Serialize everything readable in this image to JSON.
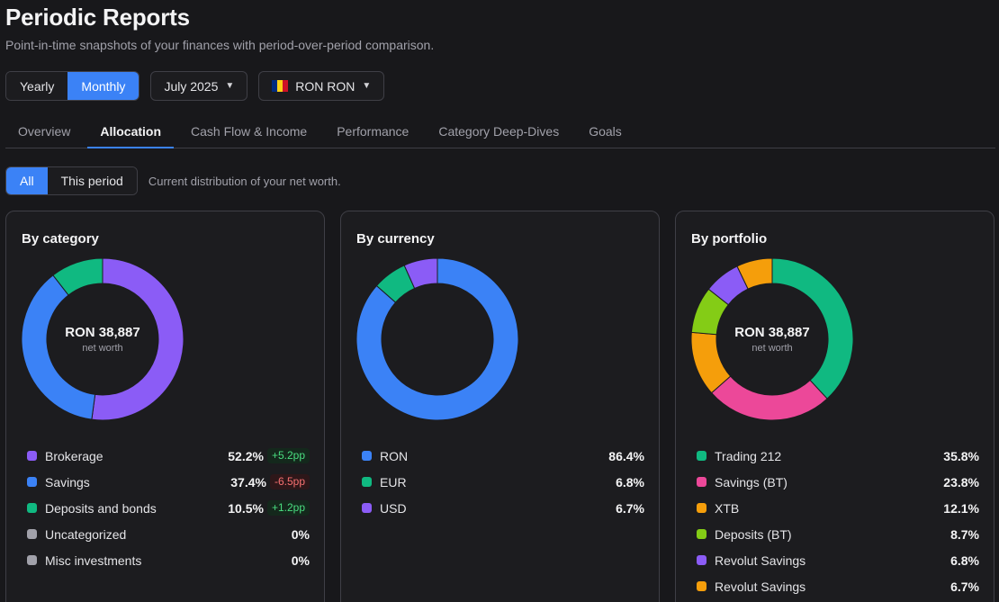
{
  "header": {
    "title": "Periodic Reports",
    "subtitle": "Point-in-time snapshots of your finances with period-over-period comparison."
  },
  "controls": {
    "period_options": [
      {
        "label": "Yearly",
        "active": false
      },
      {
        "label": "Monthly",
        "active": true
      }
    ],
    "month": "July 2025",
    "currency": "RON RON",
    "flag_colors": [
      "#002B7F",
      "#FCD116",
      "#CE1126"
    ]
  },
  "tabs": [
    {
      "label": "Overview",
      "active": false
    },
    {
      "label": "Allocation",
      "active": true
    },
    {
      "label": "Cash Flow & Income",
      "active": false
    },
    {
      "label": "Performance",
      "active": false
    },
    {
      "label": "Category Deep-Dives",
      "active": false
    },
    {
      "label": "Goals",
      "active": false
    }
  ],
  "scope": {
    "options": [
      {
        "label": "All",
        "active": true
      },
      {
        "label": "This period",
        "active": false
      }
    ],
    "hint": "Current distribution of your net worth."
  },
  "cards": [
    {
      "title": "By category",
      "center_value": "RON 38,887",
      "center_label": "net worth",
      "items": [
        {
          "name": "Brokerage",
          "pct": "52.2%",
          "value": 52.2,
          "delta": "+5.2pp",
          "trend": "up",
          "color": "#8b5cf6"
        },
        {
          "name": "Savings",
          "pct": "37.4%",
          "value": 37.4,
          "delta": "-6.5pp",
          "trend": "down",
          "color": "#3b82f6"
        },
        {
          "name": "Deposits and bonds",
          "pct": "10.5%",
          "value": 10.5,
          "delta": "+1.2pp",
          "trend": "up",
          "color": "#10b981"
        },
        {
          "name": "Uncategorized",
          "pct": "0%",
          "value": 0,
          "delta": "",
          "trend": "",
          "color": "#a1a1aa"
        },
        {
          "name": "Misc investments",
          "pct": "0%",
          "value": 0,
          "delta": "",
          "trend": "",
          "color": "#a1a1aa"
        }
      ]
    },
    {
      "title": "By currency",
      "center_value": "",
      "center_label": "",
      "items": [
        {
          "name": "RON",
          "pct": "86.4%",
          "value": 86.4,
          "color": "#3b82f6"
        },
        {
          "name": "EUR",
          "pct": "6.8%",
          "value": 6.8,
          "color": "#10b981"
        },
        {
          "name": "USD",
          "pct": "6.7%",
          "value": 6.7,
          "color": "#8b5cf6"
        }
      ]
    },
    {
      "title": "By portfolio",
      "center_value": "RON 38,887",
      "center_label": "net worth",
      "items": [
        {
          "name": "Trading 212",
          "pct": "35.8%",
          "value": 35.8,
          "color": "#10b981"
        },
        {
          "name": "Savings (BT)",
          "pct": "23.8%",
          "value": 23.8,
          "color": "#ec4899"
        },
        {
          "name": "XTB",
          "pct": "12.1%",
          "value": 12.1,
          "color": "#f59e0b"
        },
        {
          "name": "Deposits (BT)",
          "pct": "8.7%",
          "value": 8.7,
          "color": "#84cc16"
        },
        {
          "name": "Revolut Savings",
          "pct": "6.8%",
          "value": 6.8,
          "color": "#8b5cf6"
        },
        {
          "name": "Revolut Savings",
          "pct": "6.7%",
          "value": 6.7,
          "color": "#f59e0b"
        }
      ]
    }
  ]
}
